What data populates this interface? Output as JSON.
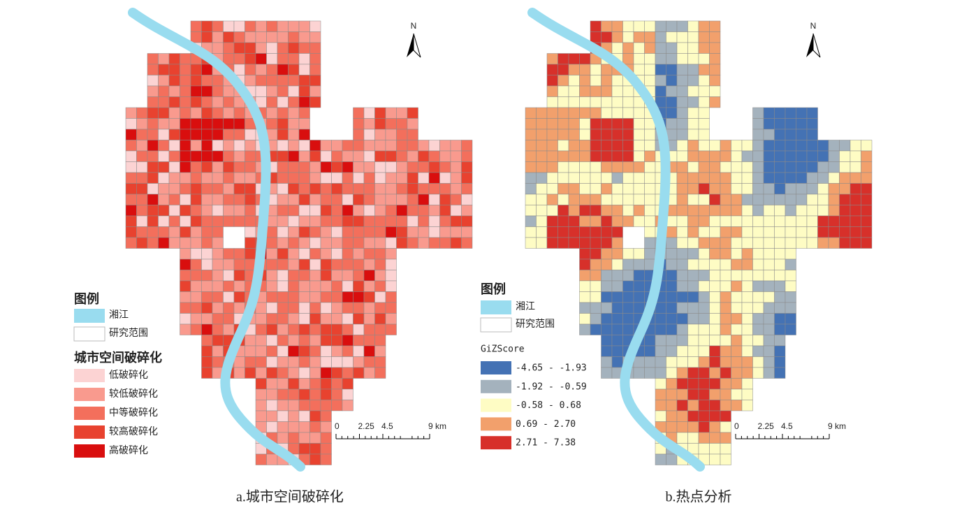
{
  "panels": [
    {
      "caption": "a.城市空间破碎化",
      "north": "N",
      "legend": {
        "title": "图例",
        "items": [
          {
            "label": "湘江",
            "color": "#99dcef"
          },
          {
            "label": "研究范围",
            "color": "#ffffff"
          }
        ],
        "class_title": "城市空间破碎化",
        "classes": [
          {
            "label": "低破碎化",
            "color": "#fcd3d3"
          },
          {
            "label": "较低破碎化",
            "color": "#f99a8e"
          },
          {
            "label": "中等破碎化",
            "color": "#f36f5c"
          },
          {
            "label": "较高破碎化",
            "color": "#e8422f"
          },
          {
            "label": "高破碎化",
            "color": "#d90e0e"
          }
        ]
      },
      "scale": {
        "ticks": [
          0,
          2.25,
          4.5,
          {
            "value": 9,
            "label": "9 km"
          }
        ]
      }
    },
    {
      "caption": "b.热点分析",
      "north": "N",
      "legend": {
        "title": "图例",
        "items": [
          {
            "label": "湘江",
            "color": "#99dcef"
          },
          {
            "label": "研究范围",
            "color": "#ffffff"
          }
        ],
        "class_title": "GiZScore",
        "classes": [
          {
            "label": "-4.65 - -1.93",
            "color": "#4472b4"
          },
          {
            "label": "-1.92 - -0.59",
            "color": "#a4b2bd"
          },
          {
            "label": "-0.58 - 0.68",
            "color": "#fefcc4"
          },
          {
            "label": "0.69 - 2.70",
            "color": "#f2a06c"
          },
          {
            "label": "2.71 - 7.38",
            "color": "#d7302a"
          }
        ]
      },
      "scale": {
        "ticks": [
          0,
          2.25,
          4.5,
          {
            "value": 9,
            "label": "9 km"
          }
        ]
      }
    }
  ]
}
